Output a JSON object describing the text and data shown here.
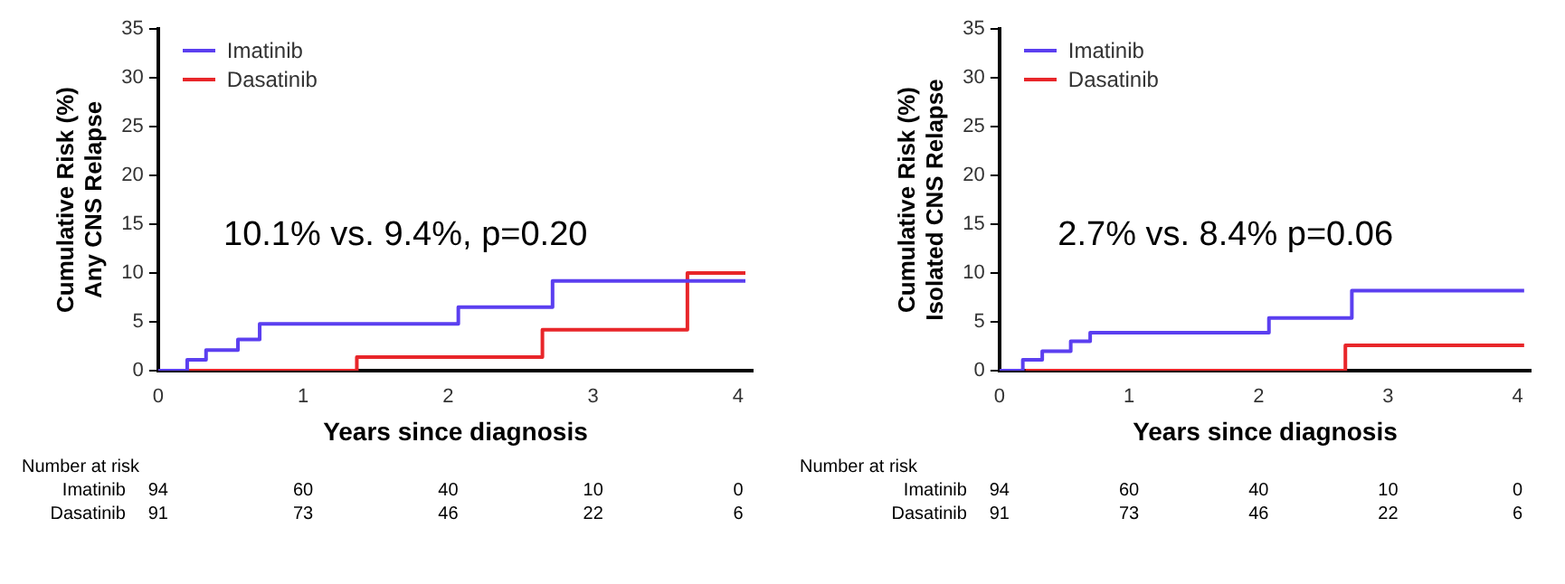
{
  "chart_data": [
    {
      "type": "step",
      "ylabel": "Cumulative Risk (%)\nAny CNS Relapse",
      "xlabel": "Years since diagnosis",
      "xlim": [
        0,
        4.1
      ],
      "xticks": [
        0,
        1,
        2,
        3,
        4
      ],
      "ylim": [
        0,
        35
      ],
      "yticks": [
        0,
        5,
        10,
        15,
        20,
        25,
        30,
        35
      ],
      "grid": false,
      "legend": "top left",
      "annotations": [
        "10.1% vs. 9.4%, p=0.20",
        "Number at risk",
        "Imatinib",
        "94",
        "60",
        "40",
        "10",
        "0",
        "Dasatinib",
        "91",
        "73",
        "46",
        "22",
        "6"
      ],
      "series": [
        {
          "name": "Imatinib",
          "color": "#5b3ff0",
          "x": [
            0,
            0.2,
            0.33,
            0.55,
            0.7,
            2.07,
            2.72,
            4.05
          ],
          "values": [
            0,
            1.1,
            2.1,
            3.2,
            4.8,
            6.5,
            9.2,
            9.2
          ]
        },
        {
          "name": "Dasatinib",
          "color": "#e8262a",
          "x": [
            0.2,
            1.37,
            2.65,
            3.65,
            4.05
          ],
          "values": [
            0,
            1.4,
            4.2,
            10,
            10
          ]
        }
      ]
    },
    {
      "type": "step",
      "ylabel": "Cumulative Risk (%)\nIsolated CNS Relapse",
      "xlabel": "Years since diagnosis",
      "xlim": [
        0,
        4.1
      ],
      "xticks": [
        0,
        1,
        2,
        3,
        4
      ],
      "ylim": [
        0,
        35
      ],
      "yticks": [
        0,
        5,
        10,
        15,
        20,
        25,
        30,
        35
      ],
      "grid": false,
      "legend": "top left",
      "annotations": [
        "2.7% vs. 8.4% p=0.06",
        "Number at risk",
        "Imatinib",
        "94",
        "60",
        "40",
        "10",
        "0",
        "Dasatinib",
        "91",
        "73",
        "46",
        "22",
        "6"
      ],
      "series": [
        {
          "name": "Imatinib",
          "color": "#5b3ff0",
          "x": [
            0,
            0.18,
            0.33,
            0.55,
            0.7,
            2.08,
            2.72,
            4.05
          ],
          "values": [
            0,
            1.1,
            2.0,
            3.0,
            3.9,
            5.4,
            8.2,
            8.2
          ]
        },
        {
          "name": "Dasatinib",
          "color": "#e8262a",
          "x": [
            0.2,
            2.67,
            4.05
          ],
          "values": [
            0,
            2.6,
            2.6
          ]
        }
      ]
    }
  ]
}
